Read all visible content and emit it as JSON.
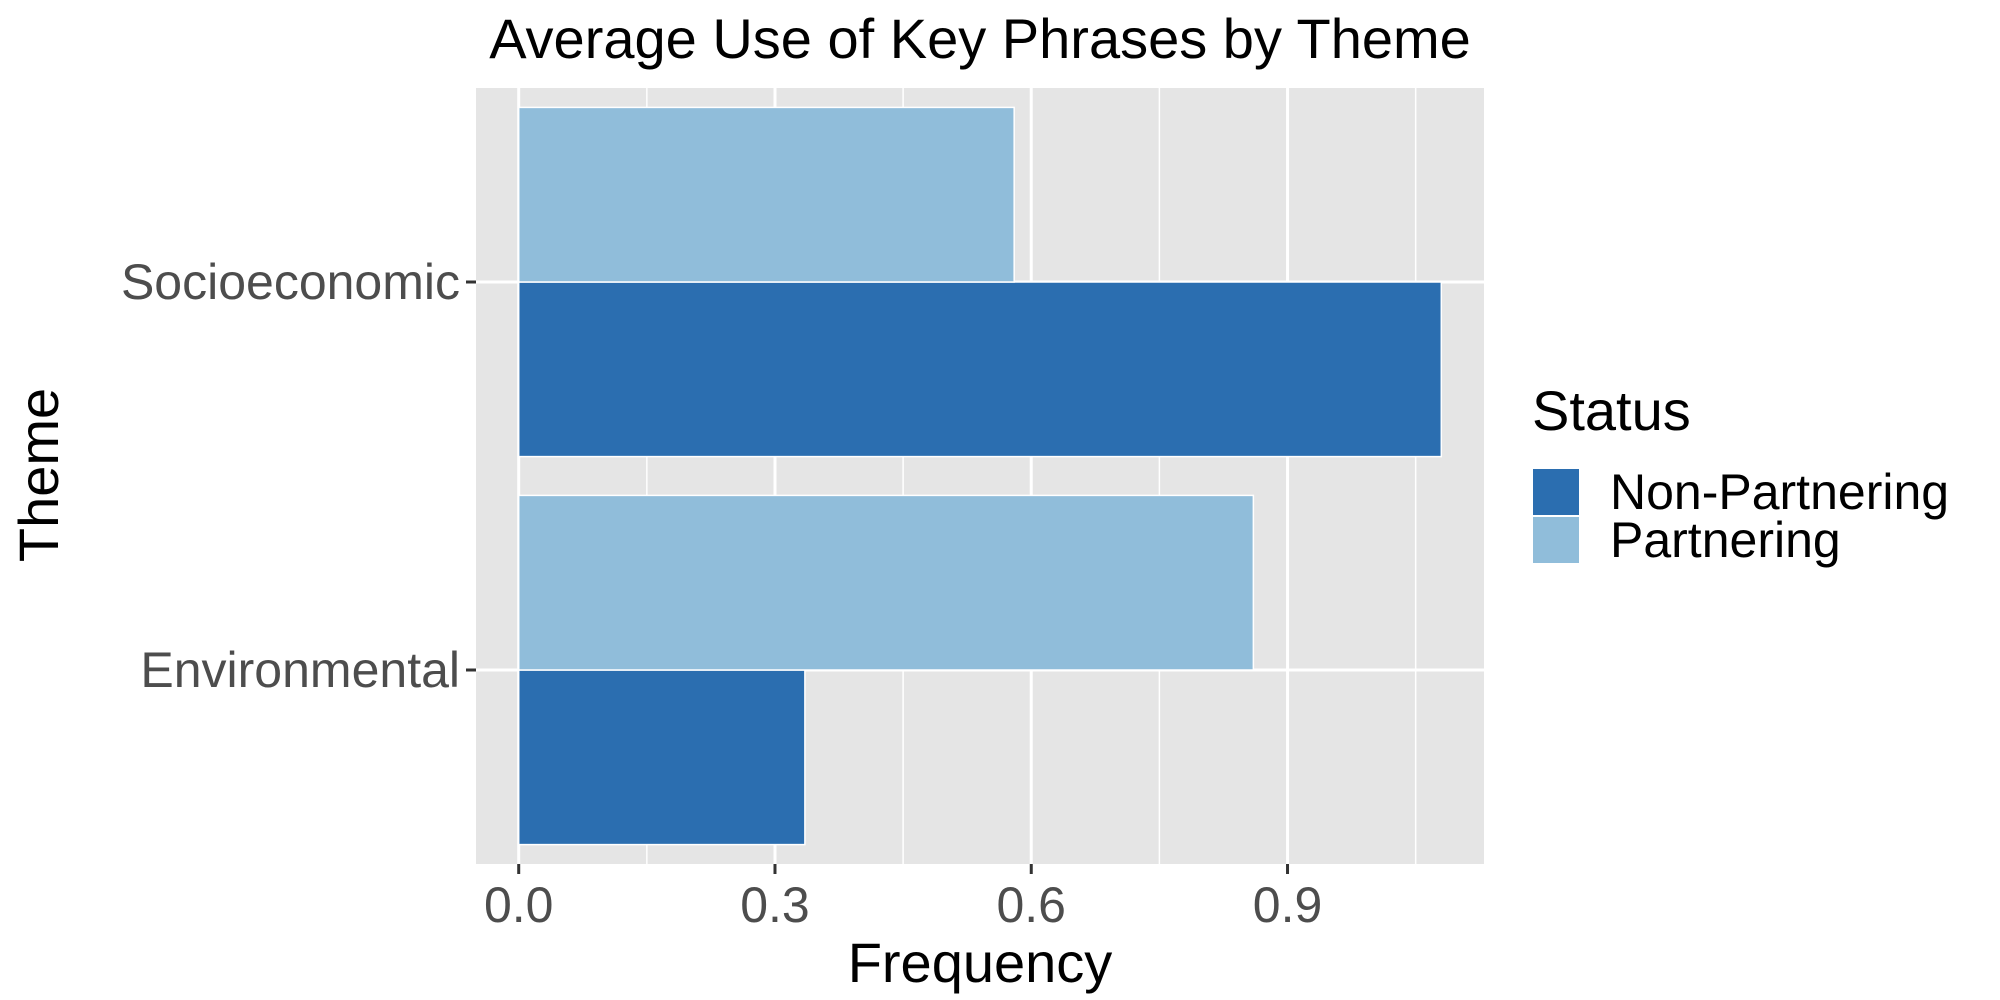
{
  "chart_data": {
    "type": "bar",
    "orientation": "horizontal",
    "title": "Average Use of Key Phrases by Theme",
    "xlabel": "Frequency",
    "ylabel": "Theme",
    "categories": [
      "Socioeconomic",
      "Environmental"
    ],
    "series": [
      {
        "name": "Non-Partnering",
        "color": "#2B6EB0",
        "values": [
          1.08,
          0.335
        ]
      },
      {
        "name": "Partnering",
        "color": "#90BDDA",
        "values": [
          0.58,
          0.86
        ]
      }
    ],
    "xlim": [
      -0.05,
      1.13
    ],
    "xticks": [
      0.0,
      0.3,
      0.6,
      0.9
    ],
    "xtick_labels": [
      "0.0",
      "0.3",
      "0.6",
      "0.9"
    ],
    "grid": true,
    "legend": {
      "title": "Status",
      "position": "right"
    },
    "panel_background": "#E5E5E5",
    "grid_color": "#FFFFFF"
  }
}
